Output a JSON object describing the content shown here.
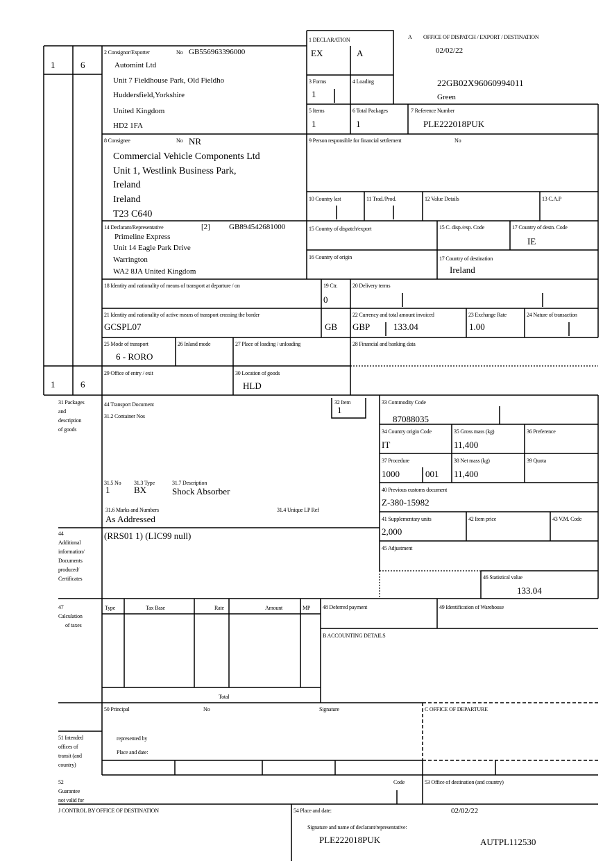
{
  "header": {
    "a_mark": "A",
    "office_title": "OFFICE OF DISPATCH / EXPORT / DESTINATION",
    "date": "02/02/22",
    "mrn": "22GB02X96060994011",
    "route": "Green"
  },
  "copy_numbers": {
    "top_left": "1",
    "top_right": "6",
    "bottom_left": "1",
    "bottom_right": "6"
  },
  "box2": {
    "label": "2 Consignor/Exporter",
    "no_label": "No",
    "no": "GB556963396000",
    "lines": [
      "Automint Ltd",
      "Unit 7 Fieldhouse Park, Old Fieldho",
      "Huddersfield,Yorkshire",
      "United Kingdom",
      "HD2 1FA"
    ]
  },
  "box1": {
    "label": "1 DECLARATION",
    "type": "EX",
    "subtype": "A"
  },
  "box3": {
    "label": "3 Forms",
    "value": "1"
  },
  "box4": {
    "label": "4 Loading"
  },
  "box5": {
    "label": "5 Items",
    "value": "1"
  },
  "box6": {
    "label": "6 Total Packages",
    "value": "1"
  },
  "box7": {
    "label": "7 Reference Number",
    "value": "PLE222018PUK"
  },
  "box8": {
    "label": "8 Consignee",
    "no_label": "No",
    "no": "NR",
    "lines": [
      "Commercial Vehicle Components Ltd",
      "Unit 1, Westlink Business Park,",
      "Ireland",
      "Ireland",
      "T23 C640"
    ]
  },
  "box9": {
    "label": "9 Person responsible for financial settlement",
    "no_label": "No"
  },
  "box10": {
    "label": "10 Country last"
  },
  "box11": {
    "label": "11 Trad./Prod."
  },
  "box12": {
    "label": "12 Value Details"
  },
  "box13": {
    "label": "13 C.A.P"
  },
  "box14": {
    "label": "14 Declarant/Representative",
    "status": "[2]",
    "no": "GB894542681000",
    "lines": [
      "Primeline Express",
      "Unit 14 Eagle Park Drive",
      "Warrington",
      "WA2 8JA United Kingdom"
    ]
  },
  "box15": {
    "label": "15 Country of dispatch/export"
  },
  "box15c": {
    "label": "15 C. disp./exp. Code"
  },
  "box17code": {
    "label": "17 Country of destn. Code",
    "value": "IE"
  },
  "box16": {
    "label": "16 Country of origin"
  },
  "box17": {
    "label": "17 Country of destination",
    "value": "Ireland"
  },
  "box18": {
    "label": "18 Identity and nationality of means of transport at departure / on"
  },
  "box19": {
    "label": "19 Ctr.",
    "value": "0"
  },
  "box20": {
    "label": "20 Delivery terms"
  },
  "box21": {
    "label": "21 Identity and nationality of active means of transport crossing the border",
    "value": "GCSPL07",
    "nationality": "GB"
  },
  "box22": {
    "label": "22 Currency and total amount invoiced",
    "currency": "GBP",
    "amount": "133.04"
  },
  "box23": {
    "label": "23 Exchange Rate",
    "value": "1.00"
  },
  "box24": {
    "label": "24 Nature of transaction"
  },
  "box25": {
    "label": "25 Mode of transport",
    "value": "6 - RORO"
  },
  "box26": {
    "label": "26 Inland mode"
  },
  "box27": {
    "label": "27 Place of loading / unloading"
  },
  "box28": {
    "label": "28 Financial and banking data"
  },
  "box29": {
    "label": "29 Office of entry / exit"
  },
  "box30": {
    "label": "30 Location of goods",
    "value": "HLD"
  },
  "box31": {
    "side_label": [
      "31 Packages",
      "and",
      "description",
      "of goods"
    ],
    "transport_doc_label": "44 Transport Document",
    "container_label": "31.2 Container Nos",
    "no_label": "31.5 No",
    "no": "1",
    "type_label": "31.3 Type",
    "type": "BX",
    "desc_label": "31.7 Description",
    "desc": "Shock Absorber",
    "marks_label": "31.6 Marks and Numbers",
    "marks": "As Addressed",
    "lp_label": "31.4 Unique LP Ref"
  },
  "box32": {
    "label": "32 Item",
    "value": "1"
  },
  "box33": {
    "label": "33 Commodity Code",
    "value": "87088035"
  },
  "box34": {
    "label": "34 Country origin Code",
    "value": "IT"
  },
  "box35": {
    "label": "35 Gross mass (kg)",
    "value": "11,400"
  },
  "box36": {
    "label": "36 Preference"
  },
  "box37": {
    "label": "37 Procedure",
    "value": "1000",
    "extra": "001"
  },
  "box38": {
    "label": "38 Net mass (kg)",
    "value": "11,400"
  },
  "box39": {
    "label": "39 Quota"
  },
  "box40": {
    "label": "40 Previous customs document",
    "value": "Z-380-15982"
  },
  "box41": {
    "label": "41 Supplementary units",
    "value": "2,000"
  },
  "box42": {
    "label": "42 Item price"
  },
  "box43": {
    "label": "43 V.M. Code"
  },
  "box44": {
    "side_label": [
      "44",
      "Additional",
      "information/",
      "Documents",
      "produced/",
      "Certificates"
    ],
    "value": "(RRS01 1) (LIC99 null)"
  },
  "box45": {
    "label": "45 Adjustment"
  },
  "box46": {
    "label": "46 Statistical value",
    "value": "133.04"
  },
  "box47": {
    "side_label": [
      "47",
      "Calculation",
      "of taxes"
    ],
    "columns": [
      "Type",
      "Tax Base",
      "Rate",
      "Amount",
      "MP"
    ],
    "total_label": "Total"
  },
  "box48": {
    "label": "48 Deferred payment"
  },
  "box49": {
    "label": "49 Identification of Warehouse"
  },
  "boxB": {
    "label": "B ACCOUNTING DETAILS"
  },
  "box50": {
    "label": "50 Principal",
    "no_label": "No",
    "signature_label": "Signature",
    "represented_label": "represented by",
    "place_label": "Place and date:"
  },
  "boxC": {
    "label": "C OFFICE OF DEPARTURE"
  },
  "box51": {
    "side_label": [
      "51 Intended",
      "offices of",
      "transit (and",
      "country)"
    ]
  },
  "box52": {
    "side_label": [
      "52",
      "Guarantee",
      "not valid for"
    ],
    "code_label": "Code"
  },
  "box53": {
    "label": "53 Office of destination (and country)"
  },
  "boxJ": {
    "label": "J CONTROL BY OFFICE OF DESTINATION"
  },
  "box54": {
    "label": "54 Place and date:",
    "date": "02/02/22",
    "sig_label": "Signature and name of declarant/representative:",
    "declarant_ref": "PLE222018PUK",
    "other_ref": "AUTPL112530"
  }
}
